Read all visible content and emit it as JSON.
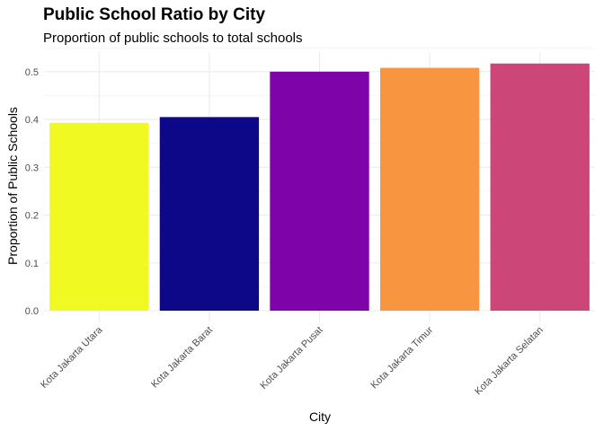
{
  "chart_data": {
    "type": "bar",
    "title": "Public School Ratio by City",
    "subtitle": "Proportion of public schools to total schools",
    "xlabel": "City",
    "ylabel": "Proportion of Public Schools",
    "categories": [
      "Kota Jakarta Utara",
      "Kota Jakarta Barat",
      "Kota Jakarta Pusat",
      "Kota Jakarta Timur",
      "Kota Jakarta Selatan"
    ],
    "values": [
      0.393,
      0.405,
      0.5,
      0.508,
      0.517
    ],
    "colors": [
      "#F0F921",
      "#0D0887",
      "#7E03A8",
      "#F89540",
      "#CC4778"
    ],
    "ylim": [
      0,
      0.54
    ],
    "yticks": [
      0.0,
      0.1,
      0.2,
      0.3,
      0.4,
      0.5
    ],
    "ytick_labels": [
      "0.0",
      "0.1",
      "0.2",
      "0.3",
      "0.4",
      "0.5"
    ],
    "grid": true,
    "legend": "none"
  }
}
